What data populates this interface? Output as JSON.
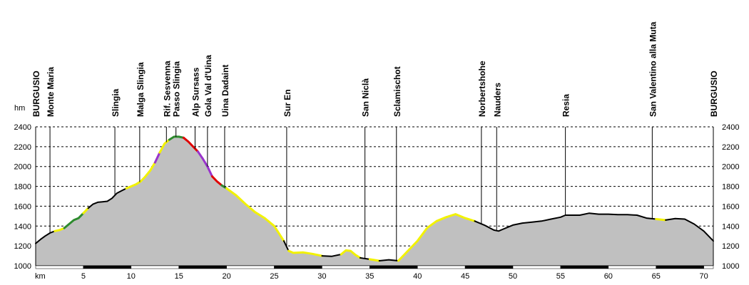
{
  "chart_data": {
    "type": "area",
    "y_unit_label": "hm",
    "x_unit_label": "km",
    "xlim": [
      0,
      71
    ],
    "ylim": [
      1000,
      2400
    ],
    "y_ticks": [
      1000,
      1200,
      1400,
      1600,
      1800,
      2000,
      2200,
      2400
    ],
    "x_ticks": [
      5,
      10,
      15,
      20,
      25,
      30,
      35,
      40,
      45,
      50,
      55,
      60,
      65,
      70
    ],
    "grid": true,
    "colors": {
      "fill": "#c0c0c0",
      "black": "#000000",
      "green": "#2e8b2e",
      "yellow": "#f2f200",
      "red": "#e00000",
      "purple": "#9933cc"
    },
    "profile": [
      [
        0,
        1225
      ],
      [
        0.5,
        1265
      ],
      [
        1,
        1300
      ],
      [
        1.5,
        1330
      ],
      [
        2,
        1350
      ],
      [
        2.5,
        1360
      ],
      [
        3,
        1380
      ],
      [
        3.5,
        1420
      ],
      [
        4,
        1460
      ],
      [
        4.5,
        1480
      ],
      [
        5,
        1530
      ],
      [
        5.5,
        1580
      ],
      [
        6,
        1620
      ],
      [
        6.5,
        1640
      ],
      [
        7,
        1645
      ],
      [
        7.5,
        1650
      ],
      [
        8,
        1680
      ],
      [
        8.5,
        1730
      ],
      [
        9,
        1755
      ],
      [
        9.5,
        1780
      ],
      [
        10,
        1800
      ],
      [
        10.5,
        1820
      ],
      [
        11,
        1850
      ],
      [
        11.5,
        1900
      ],
      [
        12,
        1960
      ],
      [
        12.5,
        2040
      ],
      [
        13,
        2140
      ],
      [
        13.5,
        2230
      ],
      [
        14,
        2270
      ],
      [
        14.5,
        2300
      ],
      [
        15,
        2300
      ],
      [
        15.5,
        2290
      ],
      [
        16,
        2250
      ],
      [
        16.5,
        2200
      ],
      [
        17,
        2150
      ],
      [
        17.5,
        2080
      ],
      [
        18,
        2000
      ],
      [
        18.5,
        1900
      ],
      [
        19,
        1850
      ],
      [
        19.5,
        1810
      ],
      [
        20,
        1780
      ],
      [
        21,
        1710
      ],
      [
        22,
        1620
      ],
      [
        23,
        1540
      ],
      [
        24,
        1480
      ],
      [
        25,
        1400
      ],
      [
        26,
        1250
      ],
      [
        26.5,
        1150
      ],
      [
        27,
        1130
      ],
      [
        28,
        1135
      ],
      [
        29,
        1120
      ],
      [
        30,
        1100
      ],
      [
        31,
        1095
      ],
      [
        32,
        1115
      ],
      [
        32.5,
        1155
      ],
      [
        33,
        1150
      ],
      [
        33.5,
        1110
      ],
      [
        34,
        1080
      ],
      [
        35,
        1065
      ],
      [
        36,
        1050
      ],
      [
        37,
        1060
      ],
      [
        38,
        1050
      ],
      [
        39,
        1150
      ],
      [
        40,
        1250
      ],
      [
        41,
        1380
      ],
      [
        42,
        1450
      ],
      [
        43,
        1490
      ],
      [
        44,
        1520
      ],
      [
        45,
        1480
      ],
      [
        46,
        1450
      ],
      [
        47,
        1410
      ],
      [
        48,
        1360
      ],
      [
        48.5,
        1350
      ],
      [
        49,
        1370
      ],
      [
        50,
        1410
      ],
      [
        51,
        1430
      ],
      [
        52,
        1440
      ],
      [
        53,
        1450
      ],
      [
        54,
        1470
      ],
      [
        55,
        1490
      ],
      [
        55.5,
        1510
      ],
      [
        56,
        1510
      ],
      [
        57,
        1510
      ],
      [
        58,
        1530
      ],
      [
        59,
        1520
      ],
      [
        60,
        1520
      ],
      [
        61,
        1515
      ],
      [
        62,
        1515
      ],
      [
        63,
        1510
      ],
      [
        64,
        1480
      ],
      [
        65,
        1470
      ],
      [
        66,
        1460
      ],
      [
        67,
        1475
      ],
      [
        68,
        1470
      ],
      [
        69,
        1420
      ],
      [
        70,
        1350
      ],
      [
        71,
        1250
      ]
    ],
    "segments": [
      {
        "color": "black",
        "from": 0,
        "to": 2
      },
      {
        "color": "yellow",
        "from": 2,
        "to": 3
      },
      {
        "color": "green",
        "from": 3,
        "to": 5
      },
      {
        "color": "yellow",
        "from": 5,
        "to": 5.5
      },
      {
        "color": "black",
        "from": 5.5,
        "to": 9.5
      },
      {
        "color": "yellow",
        "from": 9.5,
        "to": 12.5
      },
      {
        "color": "purple",
        "from": 12.5,
        "to": 13
      },
      {
        "color": "yellow",
        "from": 13,
        "to": 14
      },
      {
        "color": "green",
        "from": 14,
        "to": 15.5
      },
      {
        "color": "red",
        "from": 15.5,
        "to": 17
      },
      {
        "color": "purple",
        "from": 17,
        "to": 18.5
      },
      {
        "color": "red",
        "from": 18.5,
        "to": 19.5
      },
      {
        "color": "green",
        "from": 19.5,
        "to": 20
      },
      {
        "color": "yellow",
        "from": 20,
        "to": 26
      },
      {
        "color": "black",
        "from": 26,
        "to": 26.5
      },
      {
        "color": "yellow",
        "from": 26.5,
        "to": 30
      },
      {
        "color": "black",
        "from": 30,
        "to": 32
      },
      {
        "color": "yellow",
        "from": 32,
        "to": 34
      },
      {
        "color": "black",
        "from": 34,
        "to": 35
      },
      {
        "color": "yellow",
        "from": 35,
        "to": 36
      },
      {
        "color": "black",
        "from": 36,
        "to": 38
      },
      {
        "color": "yellow",
        "from": 38,
        "to": 46
      },
      {
        "color": "black",
        "from": 46,
        "to": 65
      },
      {
        "color": "yellow",
        "from": 65,
        "to": 66
      },
      {
        "color": "black",
        "from": 66,
        "to": 71
      }
    ],
    "places": [
      {
        "name": "BURGUSIO",
        "km": 0
      },
      {
        "name": "Monte Maria",
        "km": 1.5
      },
      {
        "name": "Slingia",
        "km": 8.3
      },
      {
        "name": "Malga Slingia",
        "km": 10.9
      },
      {
        "name": "Rif. Sesvenna",
        "km": 13.7
      },
      {
        "name": "Passo Slingia",
        "km": 14.7
      },
      {
        "name": "Alp Sursass",
        "km": 16.7
      },
      {
        "name": "Gola Val d'Uina",
        "km": 18
      },
      {
        "name": "Uina Dadaint",
        "km": 19.8
      },
      {
        "name": "Sur En",
        "km": 26.3
      },
      {
        "name": "San Niclà",
        "km": 34.5
      },
      {
        "name": "Sclamischot",
        "km": 37.8
      },
      {
        "name": "Norbertshohe",
        "km": 46.7
      },
      {
        "name": "Nauders",
        "km": 48.3
      },
      {
        "name": "Resia",
        "km": 55.5
      },
      {
        "name": "San Valentino alla Muta",
        "km": 64.6
      },
      {
        "name": "BURGUSIO",
        "km": 71
      }
    ]
  }
}
